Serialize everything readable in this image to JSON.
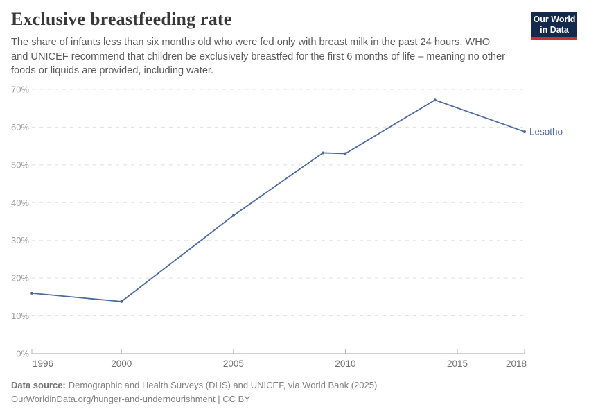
{
  "header": {
    "title": "Exclusive breastfeeding rate",
    "subtitle_lines": [
      "The share of infants less than six months old who were fed only with breast milk in the past 24 hours. WHO",
      "and UNICEF recommend that children be exclusively breastfed for the first 6 months of life – meaning no other",
      "foods or liquids are provided, including water."
    ],
    "logo": {
      "line1": "Our World",
      "line2": "in Data"
    }
  },
  "chart_data": {
    "type": "line",
    "title": "Exclusive breastfeeding rate",
    "entity": "Lesotho",
    "x": [
      1996,
      2000,
      2005,
      2009,
      2010,
      2014,
      2018
    ],
    "series": [
      {
        "name": "Lesotho",
        "color": "#4c6a9c",
        "values": [
          16,
          13.8,
          36.6,
          53.2,
          53.0,
          67.2,
          58.8
        ]
      }
    ],
    "x_ticks": [
      1996,
      2000,
      2005,
      2010,
      2015,
      2018
    ],
    "y_ticks": [
      0,
      10,
      20,
      30,
      40,
      50,
      60,
      70
    ],
    "y_suffix": "%",
    "xlim": [
      1996,
      2018
    ],
    "ylim": [
      0,
      70
    ],
    "grid": "horizontal-dashed",
    "legend": "end-of-line-label"
  },
  "footer": {
    "datasource_label": "Data source:",
    "datasource_text": "Demographic and Health Surveys (DHS) and UNICEF, via World Bank (2025)",
    "license_line": "OurWorldinData.org/hunger-and-undernourishment | CC BY"
  },
  "colors": {
    "line": "#4c6a9c",
    "grid": "#e0e0e0",
    "axis": "#a5a5a5",
    "tick": "#b3b3b3",
    "y_label": "#9e9e9e",
    "x_label": "#6f6f6f",
    "logo_bg": "#132a4c",
    "logo_accent": "#c9332b"
  }
}
